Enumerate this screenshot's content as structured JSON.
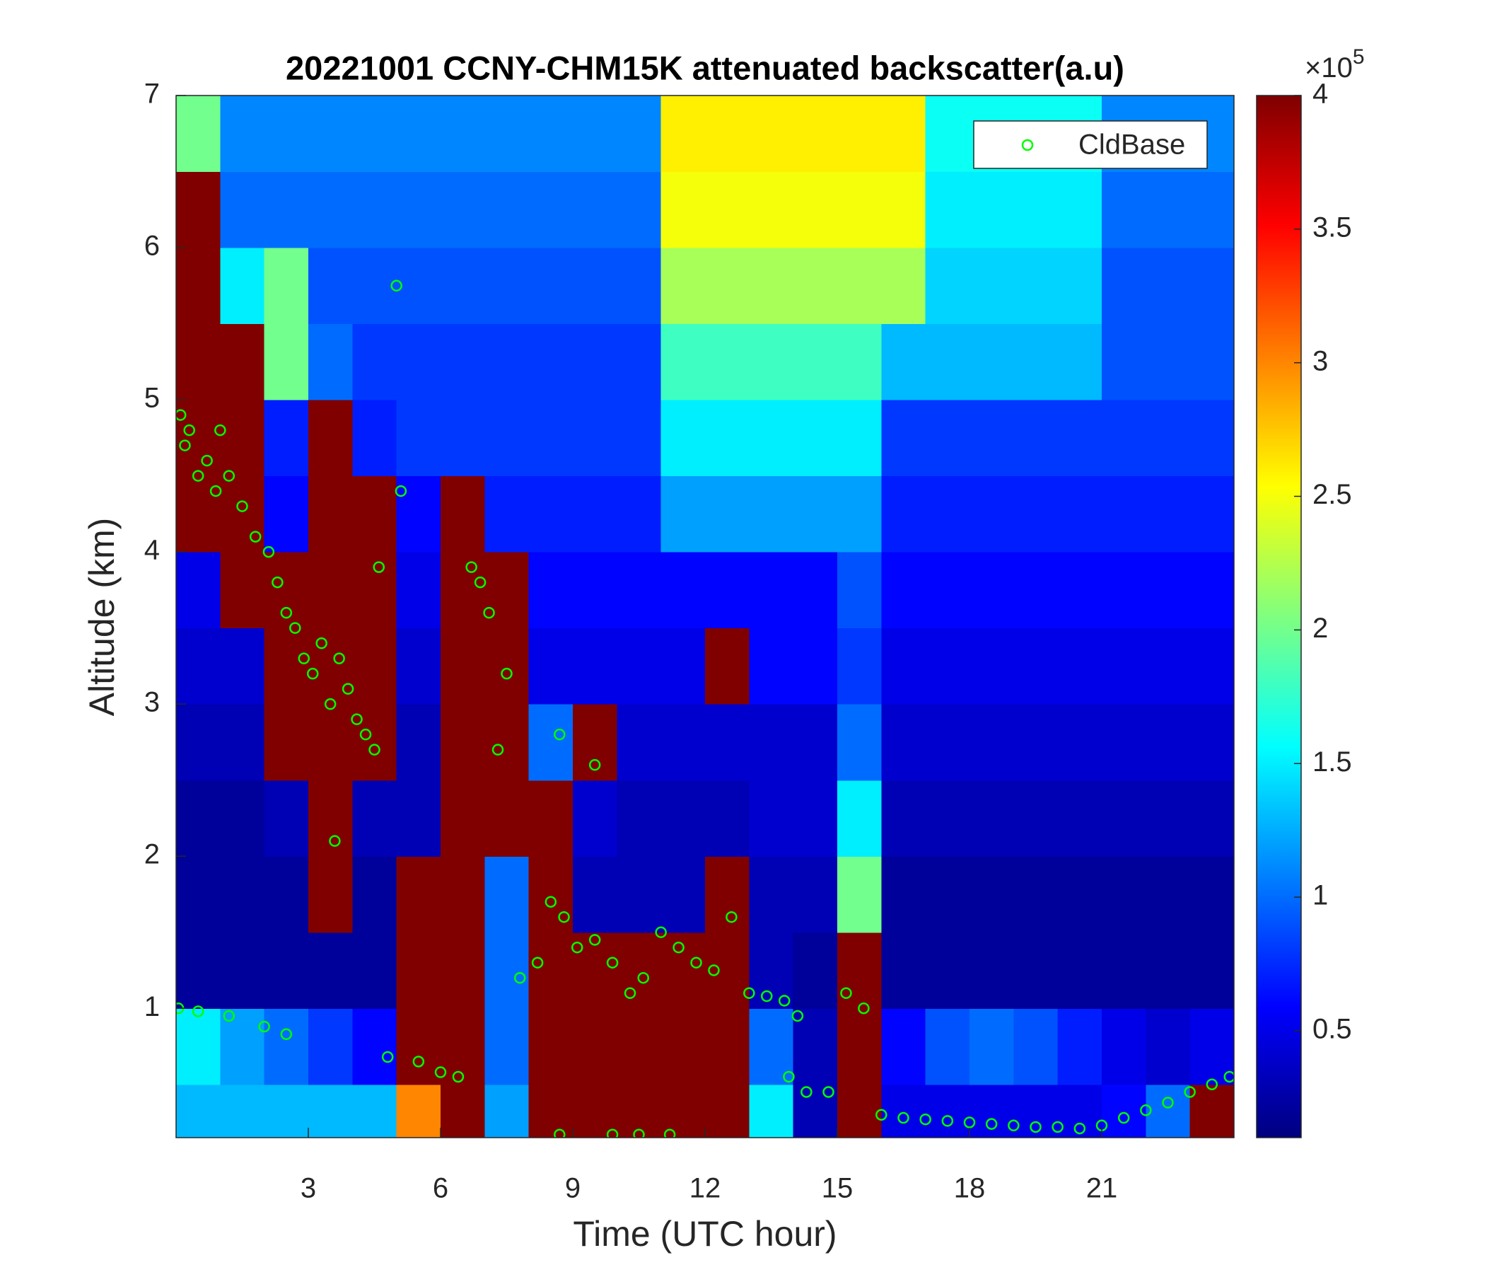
{
  "chart_data": {
    "type": "heatmap",
    "title": "20221001 CCNY-CHM15K attenuated backscatter(a.u)",
    "xlabel": "Time (UTC hour)",
    "ylabel": "Altitude (km)",
    "xlim": [
      0,
      24
    ],
    "ylim": [
      0.15,
      7
    ],
    "xticks": [
      3,
      6,
      9,
      12,
      15,
      18,
      21
    ],
    "yticks": [
      1,
      2,
      3,
      4,
      5,
      6,
      7
    ],
    "colormap": "jet",
    "clim": [
      0.1,
      4
    ],
    "colorbar_ticks": [
      0.5,
      1,
      1.5,
      2,
      2.5,
      3,
      3.5,
      4
    ],
    "colorbar_multiplier": "×10",
    "colorbar_exponent": "5",
    "x_edges": [
      0,
      1,
      2,
      3,
      4,
      5,
      6,
      7,
      8,
      9,
      10,
      11,
      12,
      13,
      14,
      15,
      16,
      17,
      18,
      19,
      20,
      21,
      22,
      23,
      24
    ],
    "y_edges": [
      0.15,
      0.5,
      1,
      1.5,
      2,
      2.5,
      3,
      3.5,
      4,
      4.5,
      5,
      5.5,
      6,
      6.5,
      7
    ],
    "z": [
      [
        1.3,
        1.3,
        1.3,
        1.3,
        1.3,
        3,
        4,
        1.2,
        4,
        4,
        4,
        4,
        4,
        1.5,
        0.3,
        4,
        0.5,
        0.5,
        0.5,
        0.5,
        0.5,
        0.6,
        1,
        4
      ],
      [
        1.5,
        1.2,
        1,
        0.8,
        0.6,
        4,
        4,
        1,
        4,
        4,
        4,
        4,
        4,
        1,
        0.3,
        4,
        0.6,
        0.9,
        1,
        0.9,
        0.7,
        0.5,
        0.4,
        0.5
      ],
      [
        0.2,
        0.2,
        0.2,
        0.2,
        0.2,
        4,
        4,
        1,
        4,
        4,
        4,
        4,
        4,
        0.3,
        0.2,
        4,
        0.2,
        0.2,
        0.2,
        0.2,
        0.2,
        0.2,
        0.2,
        0.2
      ],
      [
        0.2,
        0.2,
        0.2,
        4,
        0.2,
        4,
        4,
        1,
        4,
        0.3,
        0.3,
        0.3,
        4,
        0.3,
        0.3,
        2,
        0.2,
        0.2,
        0.2,
        0.2,
        0.2,
        0.2,
        0.2,
        0.2
      ],
      [
        0.2,
        0.2,
        0.3,
        4,
        0.3,
        0.3,
        4,
        4,
        4,
        0.4,
        0.3,
        0.3,
        0.3,
        0.4,
        0.4,
        1.5,
        0.3,
        0.3,
        0.3,
        0.3,
        0.3,
        0.3,
        0.3,
        0.3
      ],
      [
        0.3,
        0.3,
        4,
        4,
        4,
        0.3,
        4,
        4,
        1,
        4,
        0.4,
        0.4,
        0.4,
        0.4,
        0.4,
        1,
        0.4,
        0.4,
        0.4,
        0.4,
        0.4,
        0.4,
        0.4,
        0.4
      ],
      [
        0.4,
        0.4,
        4,
        4,
        4,
        0.4,
        4,
        4,
        0.5,
        0.5,
        0.5,
        0.5,
        4,
        0.6,
        0.6,
        0.8,
        0.5,
        0.5,
        0.5,
        0.5,
        0.5,
        0.5,
        0.5,
        0.5
      ],
      [
        0.5,
        4,
        4,
        4,
        4,
        0.5,
        4,
        4,
        0.6,
        0.6,
        0.6,
        0.6,
        0.6,
        0.6,
        0.6,
        0.9,
        0.6,
        0.6,
        0.6,
        0.6,
        0.6,
        0.6,
        0.6,
        0.6
      ],
      [
        4,
        4,
        0.6,
        4,
        4,
        0.6,
        4,
        0.7,
        0.7,
        0.7,
        0.7,
        1.2,
        1.2,
        1.2,
        1.2,
        1.2,
        0.7,
        0.7,
        0.7,
        0.7,
        0.7,
        0.7,
        0.7,
        0.7
      ],
      [
        4,
        4,
        0.7,
        4,
        0.7,
        0.8,
        0.8,
        0.8,
        0.8,
        0.8,
        0.8,
        1.5,
        1.5,
        1.5,
        1.5,
        1.5,
        0.8,
        0.8,
        0.8,
        0.8,
        0.8,
        0.8,
        0.8,
        0.8
      ],
      [
        4,
        4,
        2,
        1,
        0.8,
        0.8,
        0.8,
        0.8,
        0.8,
        0.8,
        0.8,
        1.8,
        1.8,
        1.8,
        1.8,
        1.8,
        1.3,
        1.3,
        1.3,
        1.3,
        1.3,
        0.9,
        0.9,
        0.9
      ],
      [
        4,
        1.5,
        2,
        0.9,
        0.9,
        0.9,
        0.9,
        0.9,
        0.9,
        0.9,
        0.9,
        2.2,
        2.2,
        2.2,
        2.2,
        2.2,
        2.2,
        1.4,
        1.4,
        1.4,
        1.4,
        0.9,
        0.9,
        0.9
      ],
      [
        4,
        1,
        1,
        1,
        1,
        1,
        1,
        1,
        1,
        1,
        1,
        2.5,
        2.5,
        2.5,
        2.5,
        2.5,
        2.5,
        1.5,
        1.5,
        1.5,
        1.5,
        1,
        1,
        1
      ],
      [
        2,
        1.1,
        1.1,
        1.1,
        1.1,
        1.1,
        1.1,
        1.1,
        1.1,
        1.1,
        1.1,
        2.6,
        2.6,
        2.6,
        2.6,
        2.6,
        2.6,
        1.6,
        1.6,
        1.6,
        1.6,
        1.1,
        1.1,
        1.1
      ]
    ],
    "overlay": {
      "type": "scatter",
      "name": "CldBase",
      "color": "#00ff00",
      "x": [
        0.05,
        0.2,
        0.1,
        0.3,
        0.5,
        0.7,
        0.9,
        1.2,
        1.5,
        1.8,
        2.1,
        2.3,
        2.5,
        2.7,
        2.9,
        3.1,
        3.3,
        3.5,
        3.7,
        3.9,
        4.1,
        4.3,
        4.5,
        4.6,
        3.6,
        0.5,
        1.2,
        2.0,
        2.5,
        4.8,
        5.5,
        6.0,
        6.4,
        6.7,
        6.9,
        7.1,
        7.5,
        7.3,
        7.8,
        8.2,
        8.5,
        8.8,
        9.1,
        9.5,
        9.9,
        10.3,
        10.6,
        11.0,
        11.4,
        11.8,
        12.2,
        12.6,
        13.0,
        13.4,
        13.8,
        14.1,
        13.9,
        14.3,
        14.8,
        15.2,
        15.6,
        16.0,
        16.5,
        17,
        17.5,
        18,
        18.5,
        19,
        19.5,
        20,
        20.5,
        21,
        21.5,
        22,
        22.5,
        23,
        23.5,
        23.9,
        8.7,
        9.5,
        8.7,
        9.9,
        10.5,
        11.2,
        5.0,
        5.1,
        1.0
      ],
      "y": [
        1.0,
        4.7,
        4.9,
        4.8,
        4.5,
        4.6,
        4.4,
        4.5,
        4.3,
        4.1,
        4.0,
        3.8,
        3.6,
        3.5,
        3.3,
        3.2,
        3.4,
        3.0,
        3.3,
        3.1,
        2.9,
        2.8,
        2.7,
        3.9,
        2.1,
        0.98,
        0.95,
        0.88,
        0.83,
        0.68,
        0.65,
        0.58,
        0.55,
        3.9,
        3.8,
        3.6,
        3.2,
        2.7,
        1.2,
        1.3,
        1.7,
        1.6,
        1.4,
        1.45,
        1.3,
        1.1,
        1.2,
        1.5,
        1.4,
        1.3,
        1.25,
        1.6,
        1.1,
        1.08,
        1.05,
        0.95,
        0.55,
        0.45,
        0.45,
        1.1,
        1.0,
        0.3,
        0.28,
        0.27,
        0.26,
        0.25,
        0.24,
        0.23,
        0.22,
        0.22,
        0.21,
        0.23,
        0.28,
        0.33,
        0.38,
        0.45,
        0.5,
        0.55,
        2.8,
        2.6,
        0.17,
        0.17,
        0.17,
        0.17,
        5.75,
        4.4,
        4.8
      ]
    },
    "legend": "upper right"
  }
}
